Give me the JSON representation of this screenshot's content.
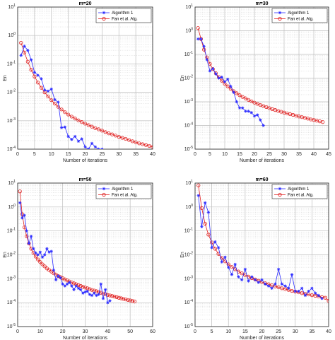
{
  "figure": {
    "background": "#ffffff"
  },
  "chart_data": [
    {
      "type": "line",
      "title": "m=20",
      "xlabel": "Number of iterations",
      "ylabel": "En",
      "yscale": "log",
      "xlim": [
        0,
        40
      ],
      "xticks": [
        0,
        5,
        10,
        15,
        20,
        25,
        30,
        35,
        40
      ],
      "ylim_exp": [
        -4,
        1
      ],
      "yticks": [
        "10^-4",
        "10^-3",
        "10^-2",
        "10^-1",
        "10^0",
        "10^1"
      ],
      "grid": true,
      "legend": {
        "position": "top-right",
        "show": true
      },
      "series": [
        {
          "name": "Algorithm 1",
          "color": "#2a2aff",
          "marker": "star",
          "x": [
            1,
            2,
            3,
            4,
            5,
            6,
            7,
            8,
            9,
            10,
            11,
            12,
            13,
            14,
            15,
            16,
            17,
            18,
            19,
            20,
            21,
            22,
            23,
            24,
            25
          ],
          "y": [
            0.2,
            0.42,
            0.3,
            0.14,
            0.05,
            0.04,
            0.03,
            0.012,
            0.011,
            0.013,
            0.0055,
            0.0045,
            0.00057,
            0.0006,
            0.00028,
            0.00022,
            0.00028,
            0.00019,
            0.00023,
            0.00012,
            0.0001,
            0.00016,
            0.00012,
            0.0001,
            0.0001
          ]
        },
        {
          "name": "Fan et al. Alg.",
          "color": "#e02020",
          "marker": "circle",
          "x": [
            1,
            2,
            3,
            4,
            5,
            6,
            7,
            8,
            9,
            10,
            11,
            12,
            13,
            14,
            15,
            16,
            17,
            18,
            19,
            20,
            21,
            22,
            23,
            24,
            25,
            26,
            27,
            28,
            29,
            30,
            31,
            32,
            33,
            34,
            35,
            36,
            37,
            38,
            39,
            40
          ],
          "y": [
            0.55,
            0.25,
            0.12,
            0.062,
            0.036,
            0.022,
            0.0145,
            0.01,
            0.0072,
            0.0053,
            0.004,
            0.0031,
            0.0025,
            0.002,
            0.00165,
            0.0014,
            0.0012,
            0.00103,
            0.0009,
            0.00079,
            0.0007,
            0.00062,
            0.00055,
            0.0005,
            0.00045,
            0.0004,
            0.00036,
            0.00033,
            0.0003,
            0.00027,
            0.00025,
            0.00023,
            0.00021,
            0.00019,
            0.000175,
            0.00016,
            0.00015,
            0.00014,
            0.00013,
            0.00012
          ]
        }
      ]
    },
    {
      "type": "line",
      "title": "m=30",
      "xlabel": "Number of iterations",
      "ylabel": "En",
      "yscale": "log",
      "xlim": [
        0,
        45
      ],
      "xticks": [
        0,
        5,
        10,
        15,
        20,
        25,
        30,
        35,
        40,
        45
      ],
      "ylim_exp": [
        -5,
        1
      ],
      "yticks": [
        "10^-5",
        "10^-4",
        "10^-3",
        "10^-2",
        "10^-1",
        "10^0",
        "10^1"
      ],
      "grid": true,
      "legend": {
        "position": "top-right",
        "show": true
      },
      "series": [
        {
          "name": "Algorithm 1",
          "color": "#2a2aff",
          "marker": "star",
          "x": [
            1,
            2,
            3,
            4,
            5,
            6,
            7,
            8,
            9,
            10,
            11,
            12,
            13,
            14,
            15,
            16,
            17,
            18,
            19,
            20,
            21,
            22,
            23
          ],
          "y": [
            0.45,
            0.45,
            0.22,
            0.06,
            0.02,
            0.025,
            0.015,
            0.01,
            0.011,
            0.007,
            0.009,
            0.0045,
            0.0025,
            0.001,
            0.00055,
            0.00055,
            0.0004,
            0.0004,
            0.00035,
            0.00025,
            0.00028,
            0.00017,
            0.0001
          ]
        },
        {
          "name": "Fan et al. Alg.",
          "color": "#e02020",
          "marker": "circle",
          "x": [
            1,
            2,
            3,
            4,
            5,
            6,
            7,
            8,
            9,
            10,
            11,
            12,
            13,
            14,
            15,
            16,
            17,
            18,
            19,
            20,
            21,
            22,
            23,
            24,
            25,
            26,
            27,
            28,
            29,
            30,
            31,
            32,
            33,
            34,
            35,
            36,
            37,
            38,
            39,
            40,
            41,
            42,
            43
          ],
          "y": [
            1.3,
            0.45,
            0.16,
            0.075,
            0.04,
            0.024,
            0.016,
            0.011,
            0.0078,
            0.0058,
            0.0045,
            0.0035,
            0.0028,
            0.0023,
            0.0019,
            0.0016,
            0.0014,
            0.0012,
            0.00105,
            0.00092,
            0.00082,
            0.00073,
            0.00066,
            0.0006,
            0.00054,
            0.00049,
            0.00045,
            0.00041,
            0.00038,
            0.00035,
            0.00032,
            0.0003,
            0.00028,
            0.00026,
            0.00024,
            0.000225,
            0.00021,
            0.000195,
            0.00018,
            0.00017,
            0.00016,
            0.00015,
            0.00014
          ]
        }
      ]
    },
    {
      "type": "line",
      "title": "m=50",
      "xlabel": "Number of iterations",
      "ylabel": "En",
      "yscale": "log",
      "xlim": [
        0,
        60
      ],
      "xticks": [
        0,
        10,
        20,
        30,
        40,
        50,
        60
      ],
      "ylim_exp": [
        -5,
        1
      ],
      "yticks": [
        "10^-5",
        "10^-4",
        "10^-3",
        "10^-2",
        "10^-1",
        "10^0",
        "10^1"
      ],
      "grid": true,
      "legend": {
        "position": "top-right",
        "show": true
      },
      "series": [
        {
          "name": "Algorithm 1",
          "color": "#2a2aff",
          "marker": "star",
          "x": [
            1,
            2,
            3,
            4,
            5,
            6,
            7,
            8,
            9,
            10,
            11,
            12,
            13,
            14,
            15,
            16,
            17,
            18,
            19,
            20,
            21,
            22,
            23,
            24,
            25,
            26,
            27,
            28,
            29,
            30,
            31,
            32,
            33,
            34,
            35,
            36,
            37,
            38,
            39,
            40,
            41
          ],
          "y": [
            1.5,
            0.35,
            0.45,
            0.1,
            0.03,
            0.06,
            0.018,
            0.012,
            0.01,
            0.013,
            0.008,
            0.01,
            0.018,
            0.013,
            0.014,
            0.0023,
            0.0009,
            0.0013,
            0.0011,
            0.0006,
            0.0005,
            0.0006,
            0.0007,
            0.0005,
            0.00035,
            0.0005,
            0.0004,
            0.00035,
            0.00025,
            0.00028,
            0.0003,
            0.00022,
            0.0002,
            0.00025,
            0.0002,
            0.00022,
            0.0006,
            0.00015,
            0.00035,
            0.0001,
            0.00012
          ]
        },
        {
          "name": "Fan et al. Alg.",
          "color": "#e02020",
          "marker": "circle",
          "x": [
            1,
            2,
            3,
            4,
            5,
            6,
            7,
            8,
            9,
            10,
            11,
            12,
            13,
            14,
            15,
            16,
            17,
            18,
            19,
            20,
            21,
            22,
            23,
            24,
            25,
            26,
            27,
            28,
            29,
            30,
            31,
            32,
            33,
            34,
            35,
            36,
            37,
            38,
            39,
            40,
            41,
            42,
            43,
            44,
            45,
            46,
            47,
            48,
            49,
            50,
            51,
            52
          ],
          "y": [
            4.5,
            0.5,
            0.14,
            0.06,
            0.03,
            0.018,
            0.012,
            0.0085,
            0.0064,
            0.005,
            0.004,
            0.0033,
            0.0027,
            0.0023,
            0.002,
            0.0017,
            0.0015,
            0.0013,
            0.00118,
            0.00105,
            0.00094,
            0.00085,
            0.00077,
            0.0007,
            0.00064,
            0.00059,
            0.00054,
            0.0005,
            0.00046,
            0.00043,
            0.0004,
            0.00037,
            0.00034,
            0.00032,
            0.0003,
            0.00028,
            0.00026,
            0.00024,
            0.000225,
            0.00021,
            0.0002,
            0.00019,
            0.00018,
            0.00017,
            0.00016,
            0.000152,
            0.000144,
            0.000137,
            0.00013,
            0.000124,
            0.000118,
            0.000112
          ]
        }
      ]
    },
    {
      "type": "line",
      "title": "m=60",
      "xlabel": "Number of iterations",
      "ylabel": "En",
      "yscale": "log",
      "xlim": [
        0,
        40
      ],
      "xticks": [
        0,
        5,
        10,
        15,
        20,
        25,
        30,
        35,
        40
      ],
      "ylim_exp": [
        -5,
        1
      ],
      "yticks": [
        "10^-5",
        "10^-4",
        "10^-3",
        "10^-2",
        "10^-1",
        "10^0",
        "10^1"
      ],
      "grid": true,
      "legend": {
        "position": "top-right",
        "show": true
      },
      "series": [
        {
          "name": "Algorithm 1",
          "color": "#2a2aff",
          "marker": "star",
          "x": [
            1,
            2,
            3,
            4,
            5,
            6,
            7,
            8,
            9,
            10,
            11,
            12,
            13,
            14,
            15,
            16,
            17,
            18,
            19,
            20,
            21,
            22,
            23,
            24,
            25,
            26,
            27,
            28,
            29,
            30,
            31,
            32,
            33,
            34,
            35,
            36,
            37,
            38
          ],
          "y": [
            3,
            0.15,
            1.5,
            0.6,
            0.02,
            0.035,
            0.02,
            0.005,
            0.008,
            0.003,
            0.0015,
            0.004,
            0.0012,
            0.0009,
            0.0025,
            0.0008,
            0.0012,
            0.0009,
            0.0007,
            0.0009,
            0.0006,
            0.0005,
            0.0004,
            0.0006,
            0.0025,
            0.0006,
            0.0005,
            0.0004,
            0.0015,
            0.0003,
            0.0003,
            0.0004,
            0.0002,
            0.0003,
            0.0004,
            0.00025,
            0.0002,
            0.00015
          ]
        },
        {
          "name": "Fan et al. Alg.",
          "color": "#e02020",
          "marker": "circle",
          "x": [
            1,
            2,
            3,
            4,
            5,
            6,
            7,
            8,
            9,
            10,
            11,
            12,
            13,
            14,
            15,
            16,
            17,
            18,
            19,
            20,
            21,
            22,
            23,
            24,
            25,
            26,
            27,
            28,
            29,
            30,
            31,
            32,
            33,
            34,
            35,
            36,
            37,
            38,
            39,
            40
          ],
          "y": [
            8,
            0.9,
            0.2,
            0.07,
            0.033,
            0.018,
            0.011,
            0.0074,
            0.0053,
            0.004,
            0.0031,
            0.0025,
            0.002,
            0.00168,
            0.00142,
            0.00122,
            0.00106,
            0.00093,
            0.00082,
            0.00073,
            0.00065,
            0.00059,
            0.00053,
            0.00048,
            0.00044,
            0.0004,
            0.00037,
            0.00034,
            0.00031,
            0.00029,
            0.00027,
            0.00025,
            0.000235,
            0.00022,
            0.000205,
            0.000193,
            0.000181,
            0.00017,
            0.00016,
            0.00012
          ]
        }
      ]
    }
  ]
}
